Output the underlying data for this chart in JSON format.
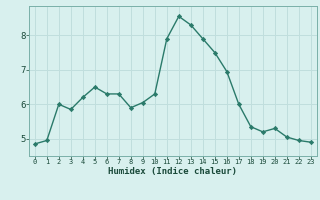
{
  "x": [
    0,
    1,
    2,
    3,
    4,
    5,
    6,
    7,
    8,
    9,
    10,
    11,
    12,
    13,
    14,
    15,
    16,
    17,
    18,
    19,
    20,
    21,
    22,
    23
  ],
  "y": [
    4.85,
    4.95,
    6.0,
    5.85,
    6.2,
    6.5,
    6.3,
    6.3,
    5.9,
    6.05,
    6.3,
    7.9,
    8.55,
    8.3,
    7.9,
    7.5,
    6.95,
    6.0,
    5.35,
    5.2,
    5.3,
    5.05,
    4.95,
    4.9
  ],
  "line_color": "#2a7a6a",
  "marker": "D",
  "marker_size": 2.2,
  "bg_color": "#d8f0ee",
  "grid_color": "#c0dedd",
  "xlabel": "Humidex (Indice chaleur)",
  "xlabel_color": "#1a4a3a",
  "tick_color": "#1a4a3a",
  "ylim": [
    4.5,
    8.85
  ],
  "xlim": [
    -0.5,
    23.5
  ],
  "yticks": [
    5,
    6,
    7,
    8
  ],
  "xticks": [
    0,
    1,
    2,
    3,
    4,
    5,
    6,
    7,
    8,
    9,
    10,
    11,
    12,
    13,
    14,
    15,
    16,
    17,
    18,
    19,
    20,
    21,
    22,
    23
  ],
  "line_width": 1.0,
  "tick_fontsize": 5.0,
  "ytick_fontsize": 6.5,
  "xlabel_fontsize": 6.5
}
